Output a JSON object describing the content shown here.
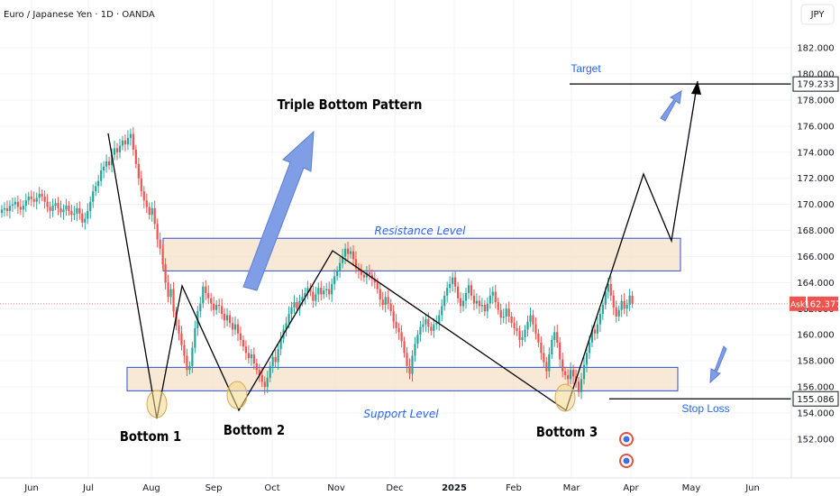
{
  "header": {
    "symbol_title": "Euro / Japanese Yen · 1D · OANDA",
    "currency": "JPY"
  },
  "colors": {
    "up": "#26a69a",
    "down": "#ef5350",
    "zone_fill": "#f5e1c8",
    "zone_border": "#2a4fd6",
    "annotation_blue": "#2962ff",
    "arrow_fill": "#7f9ee6",
    "bottom_circle": "#f4d78a",
    "price_tag": "#ef5350"
  },
  "chart_data": {
    "type": "candlestick",
    "title": "Triple Bottom Pattern",
    "y_axis": {
      "ticks": [
        "182.000",
        "180.000",
        "178.000",
        "176.000",
        "174.000",
        "172.000",
        "170.000",
        "168.000",
        "166.000",
        "164.000",
        "162.000",
        "160.000",
        "158.000",
        "156.000",
        "154.000",
        "152.000"
      ],
      "ylim": [
        150.4,
        183.6
      ]
    },
    "x_axis": {
      "ticks": [
        "Jun",
        "Jul",
        "Aug",
        "Sep",
        "Oct",
        "Nov",
        "Dec",
        "2025",
        "Feb",
        "Mar",
        "Apr",
        "May",
        "Jun"
      ]
    },
    "price_series": {
      "name": "EUR/JPY daily close",
      "start_date": "2024-05-22",
      "closes": [
        169.6,
        169.7,
        169.5,
        169.9,
        170.0,
        170.2,
        169.8,
        169.6,
        169.9,
        170.3,
        170.6,
        170.4,
        170.2,
        170.5,
        170.8,
        170.6,
        170.2,
        169.8,
        169.5,
        169.9,
        170.1,
        169.7,
        169.4,
        169.6,
        169.9,
        169.5,
        169.2,
        169.3,
        169.7,
        169.3,
        168.6,
        168.9,
        169.5,
        170.2,
        171.0,
        171.4,
        171.8,
        172.6,
        172.9,
        173.3,
        173.0,
        173.8,
        174.3,
        174.0,
        174.5,
        174.9,
        174.6,
        175.1,
        175.4,
        174.2,
        173.1,
        172.0,
        171.0,
        170.3,
        169.8,
        169.2,
        169.7,
        168.5,
        167.3,
        166.6,
        165.4,
        164.0,
        162.9,
        163.5,
        161.8,
        160.7,
        160.1,
        159.2,
        158.4,
        157.3,
        157.6,
        159.0,
        160.5,
        161.8,
        162.4,
        163.7,
        163.2,
        162.8,
        162.4,
        161.9,
        162.3,
        162.2,
        161.6,
        161.1,
        161.5,
        160.9,
        160.4,
        160.8,
        160.1,
        159.6,
        159.1,
        158.6,
        158.2,
        158.5,
        157.8,
        157.3,
        156.9,
        156.4,
        156.0,
        156.7,
        157.6,
        158.3,
        157.9,
        158.9,
        159.7,
        160.4,
        160.9,
        161.6,
        162.1,
        162.5,
        162.0,
        162.6,
        162.9,
        163.2,
        163.6,
        163.3,
        162.6,
        163.1,
        163.6,
        163.1,
        163.4,
        163.5,
        163.1,
        163.9,
        164.5,
        164.9,
        165.5,
        166.0,
        166.6,
        166.2,
        166.4,
        165.8,
        165.1,
        164.9,
        164.6,
        164.4,
        164.8,
        164.6,
        164.3,
        164.0,
        163.5,
        162.7,
        162.3,
        162.9,
        162.4,
        161.8,
        161.0,
        160.5,
        160.2,
        159.5,
        158.6,
        157.6,
        157.0,
        158.4,
        159.3,
        160.0,
        160.6,
        160.8,
        161.2,
        160.6,
        160.3,
        160.8,
        160.9,
        161.5,
        162.2,
        163.0,
        163.6,
        163.9,
        164.4,
        163.7,
        162.8,
        162.2,
        162.6,
        163.2,
        163.8,
        163.0,
        162.4,
        162.6,
        162.2,
        162.3,
        161.8,
        162.4,
        163.0,
        163.3,
        162.5,
        161.9,
        161.3,
        161.4,
        162.0,
        161.4,
        160.9,
        160.5,
        160.3,
        159.6,
        159.8,
        160.4,
        161.0,
        161.5,
        160.8,
        160.1,
        159.4,
        158.6,
        157.9,
        157.2,
        158.5,
        159.6,
        160.2,
        159.4,
        158.1,
        157.2,
        156.9,
        156.6,
        157.3,
        156.8,
        156.4,
        155.6,
        156.6,
        157.7,
        158.6,
        159.4,
        160.4,
        160.1,
        160.8,
        161.6,
        162.3,
        163.3,
        163.9,
        163.0,
        162.1,
        161.4,
        161.9,
        162.6,
        162.0,
        162.3,
        163.0,
        162.4
      ]
    },
    "patterns": {
      "triple_bottom_label": "Triple Bottom Pattern",
      "resistance_label": "Resistance Level",
      "resistance_zone": [
        164.9,
        167.4
      ],
      "support_label": "Support Level",
      "support_zone": [
        155.7,
        157.5
      ],
      "bottoms": [
        "Bottom 1",
        "Bottom 2",
        "Bottom 3"
      ],
      "target_label": "Target",
      "target_price": "179.233",
      "stop_loss_label": "Stop Loss",
      "stop_loss_price": "155.086"
    },
    "last_price": {
      "label": "Ask",
      "value": "162.377"
    }
  }
}
